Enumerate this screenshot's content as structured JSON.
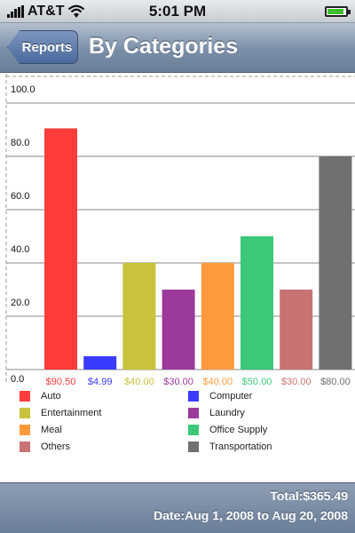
{
  "status": {
    "carrier": "AT&T",
    "time": "5:01 PM",
    "battery_level": 0.9
  },
  "nav": {
    "back_label": "Reports",
    "title": "By Categories"
  },
  "chart_data": {
    "type": "bar",
    "categories": [
      "Auto",
      "Computer",
      "Entertainment",
      "Laundry",
      "Meal",
      "Office Supply",
      "Others",
      "Transportation"
    ],
    "values": [
      90.5,
      4.99,
      40,
      30,
      40,
      50,
      30,
      80
    ],
    "value_labels": [
      "$90.50",
      "$4.99",
      "$40.00",
      "$30.00",
      "$40.00",
      "$50.00",
      "$30.00",
      "$80.00"
    ],
    "colors": [
      "#ff3b3b",
      "#3b3bff",
      "#c8c23c",
      "#9b3a9b",
      "#ff9a3c",
      "#3cc878",
      "#c87373",
      "#707070"
    ],
    "yticks": [
      "0.0",
      "20.0",
      "40.0",
      "60.0",
      "80.0",
      "100.0"
    ],
    "ylim": [
      0,
      100
    ],
    "grid": true,
    "legend": "bottom"
  },
  "footer": {
    "total": "Total:$365.49",
    "date": "Date:Aug 1, 2008 to Aug 20, 2008"
  }
}
